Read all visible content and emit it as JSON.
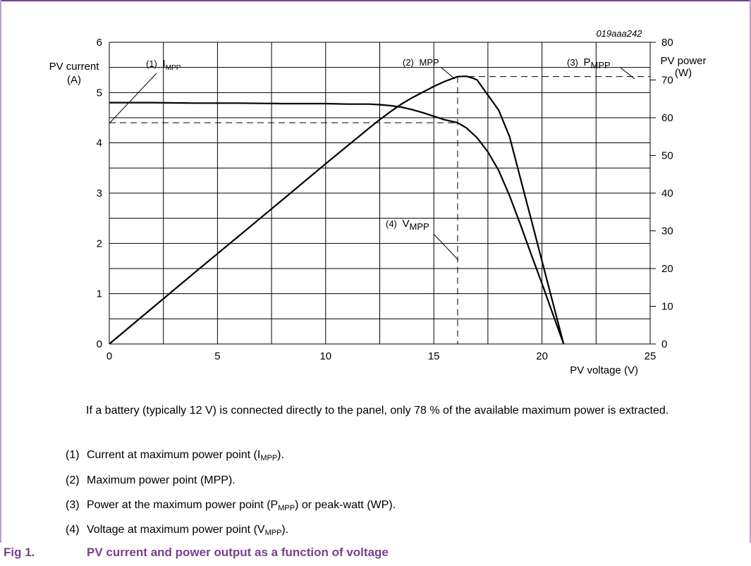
{
  "chart_data": {
    "type": "line",
    "figure_id": "019aaa242",
    "x_axis": {
      "label": "PV voltage (V)",
      "range": [
        0,
        25
      ],
      "ticks": [
        "0",
        "5",
        "10",
        "15",
        "20",
        "25"
      ]
    },
    "y_axis_left": {
      "label_line1": "PV current",
      "label_line2": "(A)",
      "range": [
        0,
        6
      ],
      "ticks": [
        "0",
        "1",
        "2",
        "3",
        "4",
        "5",
        "6"
      ]
    },
    "y_axis_right": {
      "label_line1": "PV power",
      "label_line2": "(W)",
      "range": [
        0,
        80
      ],
      "ticks": [
        "0",
        "10",
        "20",
        "30",
        "40",
        "50",
        "60",
        "70",
        "80"
      ]
    },
    "grid": true,
    "series": [
      {
        "axis": "left",
        "points": [
          [
            0,
            4.8
          ],
          [
            2,
            4.8
          ],
          [
            4,
            4.79
          ],
          [
            6,
            4.79
          ],
          [
            8,
            4.78
          ],
          [
            10,
            4.78
          ],
          [
            11,
            4.77
          ],
          [
            12,
            4.77
          ],
          [
            12.5,
            4.76
          ],
          [
            13,
            4.74
          ],
          [
            13.5,
            4.71
          ],
          [
            14,
            4.66
          ],
          [
            14.5,
            4.6
          ],
          [
            15,
            4.53
          ],
          [
            15.5,
            4.46
          ],
          [
            16.1,
            4.4
          ],
          [
            16.5,
            4.3
          ],
          [
            17,
            4.1
          ],
          [
            17.5,
            3.82
          ],
          [
            18,
            3.45
          ],
          [
            18.5,
            2.95
          ],
          [
            19,
            2.38
          ],
          [
            19.5,
            1.78
          ],
          [
            20,
            1.2
          ],
          [
            20.5,
            0.6
          ],
          [
            21,
            0
          ]
        ]
      },
      {
        "axis": "right",
        "points": [
          [
            0,
            0
          ],
          [
            2,
            9.6
          ],
          [
            4,
            19.2
          ],
          [
            6,
            28.7
          ],
          [
            8,
            38.2
          ],
          [
            10,
            47.8
          ],
          [
            11,
            52.5
          ],
          [
            12,
            57.2
          ],
          [
            12.5,
            59.5
          ],
          [
            13,
            61.6
          ],
          [
            13.5,
            63.6
          ],
          [
            14,
            65.3
          ],
          [
            14.5,
            66.8
          ],
          [
            15,
            68.3
          ],
          [
            15.5,
            69.6
          ],
          [
            16.1,
            70.9
          ],
          [
            16.5,
            71
          ],
          [
            16.8,
            70.5
          ],
          [
            17,
            70
          ],
          [
            17.5,
            66
          ],
          [
            18,
            62
          ],
          [
            18.5,
            55
          ],
          [
            19,
            44
          ],
          [
            19.5,
            33
          ],
          [
            20,
            22
          ],
          [
            20.5,
            11
          ],
          [
            21,
            0
          ]
        ]
      }
    ],
    "reference_lines": {
      "i_mpp": 4.4,
      "v_mpp": 16.1,
      "p_mpp": 70.9
    },
    "annotations": [
      {
        "num": "(1)",
        "main": "I",
        "sub": "MPP"
      },
      {
        "num": "(2)",
        "main": "MPP",
        "sub": ""
      },
      {
        "num": "(3)",
        "main": "P",
        "sub": "MPP"
      },
      {
        "num": "(4)",
        "main": "V",
        "sub": "MPP"
      }
    ]
  },
  "note": "If a battery (typically 12 V) is connected directly to the panel, only 78 % of the available maximum power is extracted.",
  "legend": [
    {
      "num": "(1)",
      "pre": "Current at maximum power point (I",
      "sub": "MPP",
      "post": ")."
    },
    {
      "num": "(2)",
      "pre": "Maximum power point (MPP).",
      "sub": "",
      "post": ""
    },
    {
      "num": "(3)",
      "pre": "Power at the maximum power point (P",
      "sub": "MPP",
      "post": ") or peak-watt (WP)."
    },
    {
      "num": "(4)",
      "pre": "Voltage at maximum power point (V",
      "sub": "MPP",
      "post": ")."
    }
  ],
  "caption": {
    "num": "Fig 1.",
    "text": "PV current and power output as a function of voltage"
  },
  "colors": {
    "accent": "#7a3f8f",
    "curve": "#000000",
    "grid": "#000000"
  }
}
